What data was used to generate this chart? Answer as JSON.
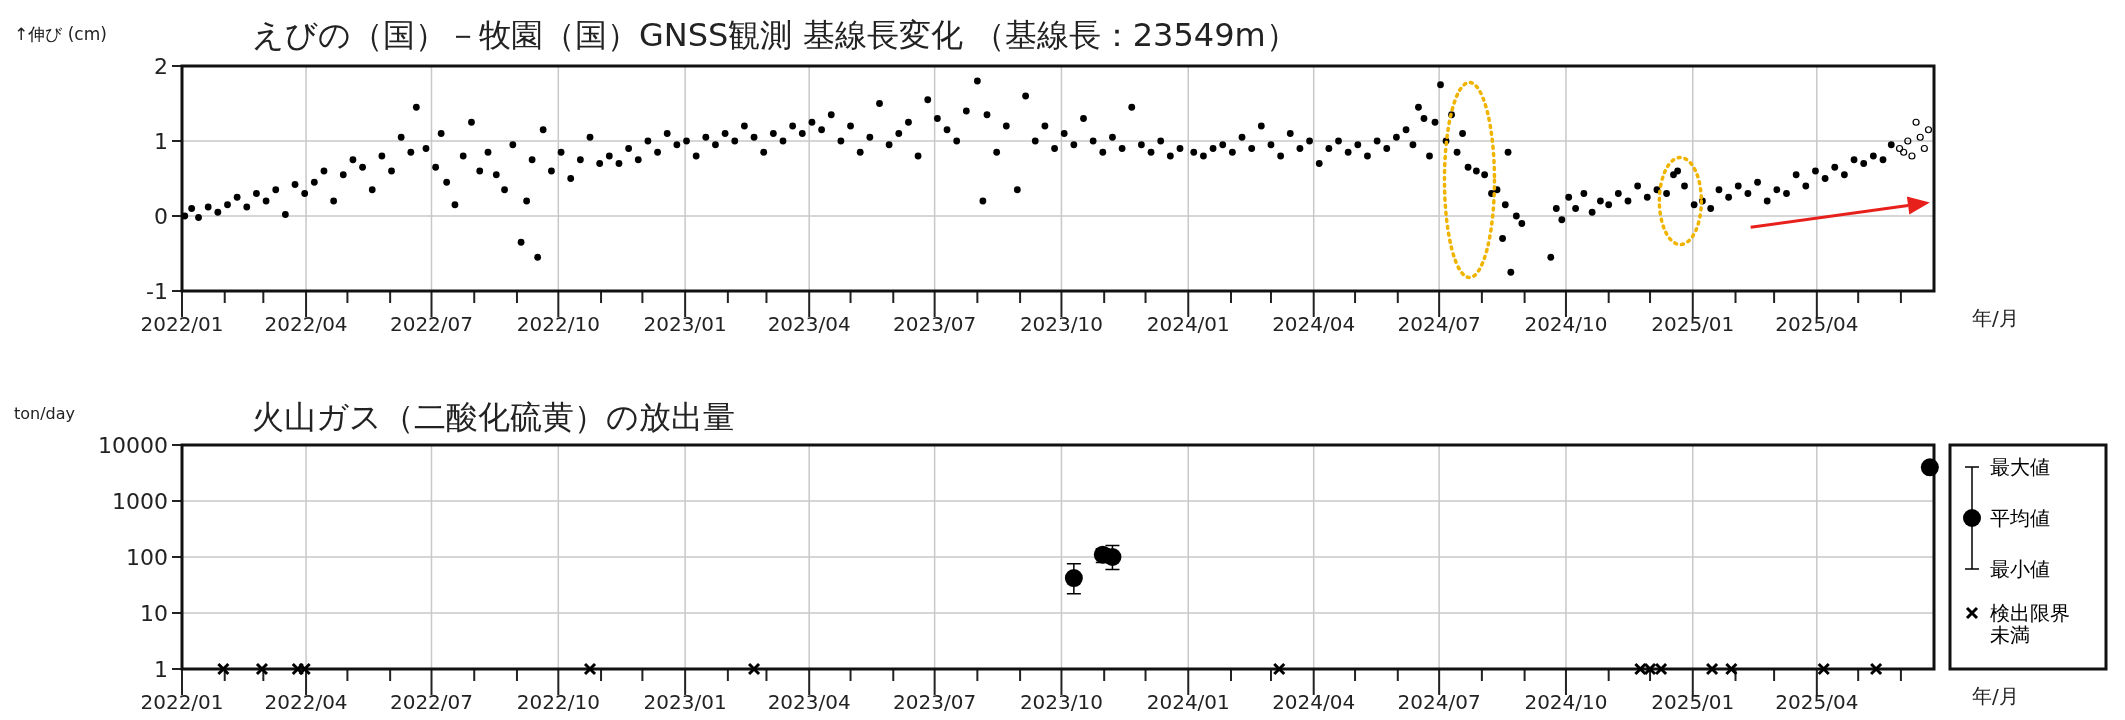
{
  "chart_data": [
    {
      "type": "scatter",
      "title": "えびの（国）－牧園（国）GNSS観測 基線長変化 （基線長：23549m）",
      "ylabel": "↑伸び (cm)",
      "xlabel": "年/月",
      "xlim": [
        "2022-01-01",
        "2025-06-25"
      ],
      "ylim": [
        -1,
        2
      ],
      "yticks": [
        -1,
        0,
        1,
        2
      ],
      "grid": true,
      "legend": false,
      "marker": "circle",
      "xticks": [
        {
          "value": "2022-01",
          "label": "2022/01"
        },
        {
          "value": "2022-02",
          "label": null
        },
        {
          "value": "2022-03",
          "label": null
        },
        {
          "value": "2022-04",
          "label": "2022/04"
        },
        {
          "value": "2022-05",
          "label": null
        },
        {
          "value": "2022-06",
          "label": null
        },
        {
          "value": "2022-07",
          "label": "2022/07"
        },
        {
          "value": "2022-08",
          "label": null
        },
        {
          "value": "2022-09",
          "label": null
        },
        {
          "value": "2022-10",
          "label": "2022/10"
        },
        {
          "value": "2022-11",
          "label": null
        },
        {
          "value": "2022-12",
          "label": null
        },
        {
          "value": "2023-01",
          "label": "2023/01"
        },
        {
          "value": "2023-02",
          "label": null
        },
        {
          "value": "2023-03",
          "label": null
        },
        {
          "value": "2023-04",
          "label": "2023/04"
        },
        {
          "value": "2023-05",
          "label": null
        },
        {
          "value": "2023-06",
          "label": null
        },
        {
          "value": "2023-07",
          "label": "2023/07"
        },
        {
          "value": "2023-08",
          "label": null
        },
        {
          "value": "2023-09",
          "label": null
        },
        {
          "value": "2023-10",
          "label": "2023/10"
        },
        {
          "value": "2023-11",
          "label": null
        },
        {
          "value": "2023-12",
          "label": null
        },
        {
          "value": "2024-01",
          "label": "2024/01"
        },
        {
          "value": "2024-02",
          "label": null
        },
        {
          "value": "2024-03",
          "label": null
        },
        {
          "value": "2024-04",
          "label": "2024/04"
        },
        {
          "value": "2024-05",
          "label": null
        },
        {
          "value": "2024-06",
          "label": null
        },
        {
          "value": "2024-07",
          "label": "2024/07"
        },
        {
          "value": "2024-08",
          "label": null
        },
        {
          "value": "2024-09",
          "label": null
        },
        {
          "value": "2024-10",
          "label": "2024/10"
        },
        {
          "value": "2024-11",
          "label": null
        },
        {
          "value": "2024-12",
          "label": null
        },
        {
          "value": "2025-01",
          "label": "2025/01"
        },
        {
          "value": "2025-02",
          "label": null
        },
        {
          "value": "2025-03",
          "label": null
        },
        {
          "value": "2025-04",
          "label": "2025/04"
        },
        {
          "value": "2025-05",
          "label": null
        },
        {
          "value": "2025-06",
          "label": null
        }
      ],
      "series": [
        {
          "color": "#000000",
          "x": [
            "2022-01-03",
            "2022-01-08",
            "2022-01-13",
            "2022-01-20",
            "2022-01-27",
            "2022-02-03",
            "2022-02-10",
            "2022-02-17",
            "2022-02-24",
            "2022-03-03",
            "2022-03-10",
            "2022-03-17",
            "2022-03-24",
            "2022-03-31",
            "2022-04-07",
            "2022-04-14",
            "2022-04-21",
            "2022-04-28",
            "2022-05-05",
            "2022-05-12",
            "2022-05-19",
            "2022-05-26",
            "2022-06-02",
            "2022-06-09",
            "2022-06-16",
            "2022-06-20",
            "2022-06-27",
            "2022-07-04",
            "2022-07-08",
            "2022-07-12",
            "2022-07-18",
            "2022-07-24",
            "2022-07-30",
            "2022-08-05",
            "2022-08-11",
            "2022-08-17",
            "2022-08-23",
            "2022-08-29",
            "2022-09-04",
            "2022-09-08",
            "2022-09-12",
            "2022-09-16",
            "2022-09-20",
            "2022-09-26",
            "2022-10-03",
            "2022-10-10",
            "2022-10-17",
            "2022-10-24",
            "2022-10-31",
            "2022-11-07",
            "2022-11-14",
            "2022-11-21",
            "2022-11-28",
            "2022-12-05",
            "2022-12-12",
            "2022-12-19",
            "2022-12-26",
            "2023-01-02",
            "2023-01-09",
            "2023-01-16",
            "2023-01-23",
            "2023-01-30",
            "2023-02-06",
            "2023-02-13",
            "2023-02-20",
            "2023-02-27",
            "2023-03-06",
            "2023-03-13",
            "2023-03-20",
            "2023-03-27",
            "2023-04-03",
            "2023-04-10",
            "2023-04-17",
            "2023-04-24",
            "2023-05-01",
            "2023-05-08",
            "2023-05-15",
            "2023-05-22",
            "2023-05-29",
            "2023-06-05",
            "2023-06-12",
            "2023-06-19",
            "2023-06-26",
            "2023-07-03",
            "2023-07-10",
            "2023-07-17",
            "2023-07-24",
            "2023-08-01",
            "2023-08-05",
            "2023-08-08",
            "2023-08-15",
            "2023-08-22",
            "2023-08-30",
            "2023-09-05",
            "2023-09-12",
            "2023-09-19",
            "2023-09-26",
            "2023-10-03",
            "2023-10-10",
            "2023-10-17",
            "2023-10-24",
            "2023-10-31",
            "2023-11-07",
            "2023-11-14",
            "2023-11-21",
            "2023-11-28",
            "2023-12-05",
            "2023-12-12",
            "2023-12-19",
            "2023-12-26",
            "2024-01-05",
            "2024-01-12",
            "2024-01-19",
            "2024-01-26",
            "2024-02-02",
            "2024-02-09",
            "2024-02-16",
            "2024-02-23",
            "2024-03-01",
            "2024-03-08",
            "2024-03-15",
            "2024-03-22",
            "2024-03-29",
            "2024-04-05",
            "2024-04-12",
            "2024-04-19",
            "2024-04-26",
            "2024-05-03",
            "2024-05-10",
            "2024-05-17",
            "2024-05-24",
            "2024-05-31",
            "2024-06-07",
            "2024-06-12",
            "2024-06-16",
            "2024-06-20",
            "2024-06-24",
            "2024-06-28",
            "2024-07-02",
            "2024-07-06",
            "2024-07-10",
            "2024-07-14",
            "2024-07-18",
            "2024-07-22",
            "2024-07-28",
            "2024-08-03",
            "2024-08-08",
            "2024-08-12",
            "2024-08-16",
            "2024-08-18",
            "2024-08-20",
            "2024-08-22",
            "2024-08-26",
            "2024-08-30",
            "2024-09-20",
            "2024-09-24",
            "2024-09-28",
            "2024-10-03",
            "2024-10-08",
            "2024-10-14",
            "2024-10-20",
            "2024-10-26",
            "2024-11-01",
            "2024-11-08",
            "2024-11-15",
            "2024-11-22",
            "2024-11-29",
            "2024-12-06",
            "2024-12-13",
            "2024-12-18",
            "2024-12-21",
            "2024-12-26",
            "2025-01-02",
            "2025-01-08",
            "2025-01-14",
            "2025-01-20",
            "2025-01-27",
            "2025-02-03",
            "2025-02-10",
            "2025-02-17",
            "2025-02-24",
            "2025-03-03",
            "2025-03-10",
            "2025-03-17",
            "2025-03-24",
            "2025-03-31",
            "2025-04-07",
            "2025-04-14",
            "2025-04-21",
            "2025-04-28",
            "2025-05-05",
            "2025-05-12",
            "2025-05-19",
            "2025-05-25"
          ],
          "values": [
            0.0,
            0.1,
            -0.02,
            0.12,
            0.05,
            0.15,
            0.25,
            0.12,
            0.3,
            0.2,
            0.35,
            0.02,
            0.42,
            0.3,
            0.45,
            0.6,
            0.2,
            0.55,
            0.75,
            0.65,
            0.35,
            0.8,
            0.6,
            1.05,
            0.85,
            1.45,
            0.9,
            0.65,
            1.1,
            0.45,
            0.15,
            0.8,
            1.25,
            0.6,
            0.85,
            0.55,
            0.35,
            0.95,
            -0.35,
            0.2,
            0.75,
            -0.55,
            1.15,
            0.6,
            0.85,
            0.5,
            0.75,
            1.05,
            0.7,
            0.8,
            0.7,
            0.9,
            0.75,
            1.0,
            0.85,
            1.1,
            0.95,
            1.0,
            0.8,
            1.05,
            0.95,
            1.1,
            1.0,
            1.2,
            1.05,
            0.85,
            1.1,
            1.0,
            1.2,
            1.1,
            1.25,
            1.15,
            1.35,
            1.0,
            1.2,
            0.85,
            1.05,
            1.5,
            0.95,
            1.1,
            1.25,
            0.8,
            1.55,
            1.3,
            1.15,
            1.0,
            1.4,
            1.8,
            0.2,
            1.35,
            0.85,
            1.2,
            0.35,
            1.6,
            1.0,
            1.2,
            0.9,
            1.1,
            0.95,
            1.3,
            1.0,
            0.85,
            1.05,
            0.9,
            1.45,
            0.95,
            0.85,
            1.0,
            0.8,
            0.9,
            0.85,
            0.8,
            0.9,
            0.95,
            0.85,
            1.05,
            0.9,
            1.2,
            0.95,
            0.8,
            1.1,
            0.9,
            1.0,
            0.7,
            0.9,
            1.0,
            0.85,
            0.95,
            0.8,
            1.0,
            0.9,
            1.05,
            1.15,
            0.95,
            1.45,
            1.3,
            0.8,
            1.25,
            1.75,
            1.0,
            1.35,
            0.85,
            1.1,
            0.65,
            0.6,
            0.55,
            0.3,
            0.35,
            -0.3,
            0.15,
            0.85,
            -0.75,
            0.0,
            -0.1,
            -0.55,
            0.1,
            -0.05,
            0.25,
            0.1,
            0.3,
            0.05,
            0.2,
            0.15,
            0.3,
            0.2,
            0.4,
            0.25,
            0.35,
            0.3,
            0.55,
            0.6,
            0.4,
            0.15,
            0.2,
            0.1,
            0.35,
            0.25,
            0.4,
            0.3,
            0.45,
            0.2,
            0.35,
            0.3,
            0.55,
            0.4,
            0.6,
            0.5,
            0.65,
            0.55,
            0.75,
            0.7,
            0.8,
            0.75,
            0.95
          ]
        },
        {
          "color": "#000000",
          "x": [
            "2025-05-31",
            "2025-06-03",
            "2025-06-06",
            "2025-06-09",
            "2025-06-12",
            "2025-06-15",
            "2025-06-18",
            "2025-06-21"
          ],
          "values": [
            0.9,
            0.85,
            1.0,
            0.8,
            1.25,
            1.05,
            0.9,
            1.15
          ]
        }
      ]
    },
    {
      "type": "scatter",
      "title": "火山ガス（二酸化硫黄）の放出量",
      "ylabel": "ton/day",
      "xlabel": "年/月",
      "log": true,
      "xlim": [
        "2022-01-01",
        "2025-06-25"
      ],
      "ylim": [
        1,
        10000
      ],
      "yticks": [
        1,
        10,
        100,
        1000,
        10000
      ],
      "grid": true,
      "legend": "right",
      "annotations": [
        "最大値",
        "最小値"
      ],
      "xticks": [
        {
          "value": "2022-01",
          "label": "2022/01"
        },
        {
          "value": "2022-02",
          "label": null
        },
        {
          "value": "2022-03",
          "label": null
        },
        {
          "value": "2022-04",
          "label": "2022/04"
        },
        {
          "value": "2022-05",
          "label": null
        },
        {
          "value": "2022-06",
          "label": null
        },
        {
          "value": "2022-07",
          "label": "2022/07"
        },
        {
          "value": "2022-08",
          "label": null
        },
        {
          "value": "2022-09",
          "label": null
        },
        {
          "value": "2022-10",
          "label": "2022/10"
        },
        {
          "value": "2022-11",
          "label": null
        },
        {
          "value": "2022-12",
          "label": null
        },
        {
          "value": "2023-01",
          "label": "2023/01"
        },
        {
          "value": "2023-02",
          "label": null
        },
        {
          "value": "2023-03",
          "label": null
        },
        {
          "value": "2023-04",
          "label": "2023/04"
        },
        {
          "value": "2023-05",
          "label": null
        },
        {
          "value": "2023-06",
          "label": null
        },
        {
          "value": "2023-07",
          "label": "2023/07"
        },
        {
          "value": "2023-08",
          "label": null
        },
        {
          "value": "2023-09",
          "label": null
        },
        {
          "value": "2023-10",
          "label": "2023/10"
        },
        {
          "value": "2023-11",
          "label": null
        },
        {
          "value": "2023-12",
          "label": null
        },
        {
          "value": "2024-01",
          "label": "2024/01"
        },
        {
          "value": "2024-02",
          "label": null
        },
        {
          "value": "2024-03",
          "label": null
        },
        {
          "value": "2024-04",
          "label": "2024/04"
        },
        {
          "value": "2024-05",
          "label": null
        },
        {
          "value": "2024-06",
          "label": null
        },
        {
          "value": "2024-07",
          "label": "2024/07"
        },
        {
          "value": "2024-08",
          "label": null
        },
        {
          "value": "2024-09",
          "label": null
        },
        {
          "value": "2024-10",
          "label": "2024/10"
        },
        {
          "value": "2024-11",
          "label": null
        },
        {
          "value": "2024-12",
          "label": null
        },
        {
          "value": "2025-01",
          "label": "2025/01"
        },
        {
          "value": "2025-02",
          "label": null
        },
        {
          "value": "2025-03",
          "label": null
        },
        {
          "value": "2025-04",
          "label": "2025/04"
        },
        {
          "value": "2025-05",
          "label": null
        },
        {
          "value": "2025-06",
          "label": null
        }
      ],
      "series": [
        {
          "name": "平均値",
          "color": "#000000",
          "marker": "circle",
          "x": [
            "2023-10-10",
            "2023-10-31",
            "2023-11-07",
            "2025-06-22"
          ],
          "values": [
            42,
            110,
            100,
            4000
          ],
          "errors": [
            [
              22,
              76
            ],
            [
              80,
              140
            ],
            [
              60,
              160
            ],
            null
          ]
        },
        {
          "name": "検出限界未満",
          "color": "#000000",
          "marker": "cross",
          "x": [
            "2022-01-31",
            "2022-02-28",
            "2022-03-26",
            "2022-03-31",
            "2022-10-24",
            "2023-02-20",
            "2024-03-07",
            "2024-11-24",
            "2024-12-01",
            "2024-12-09",
            "2025-01-15",
            "2025-01-29",
            "2025-04-06",
            "2025-05-14"
          ],
          "values": [
            1,
            1,
            1,
            1,
            1,
            1,
            1,
            1,
            1,
            1,
            1,
            1,
            1,
            1
          ]
        }
      ]
    }
  ]
}
